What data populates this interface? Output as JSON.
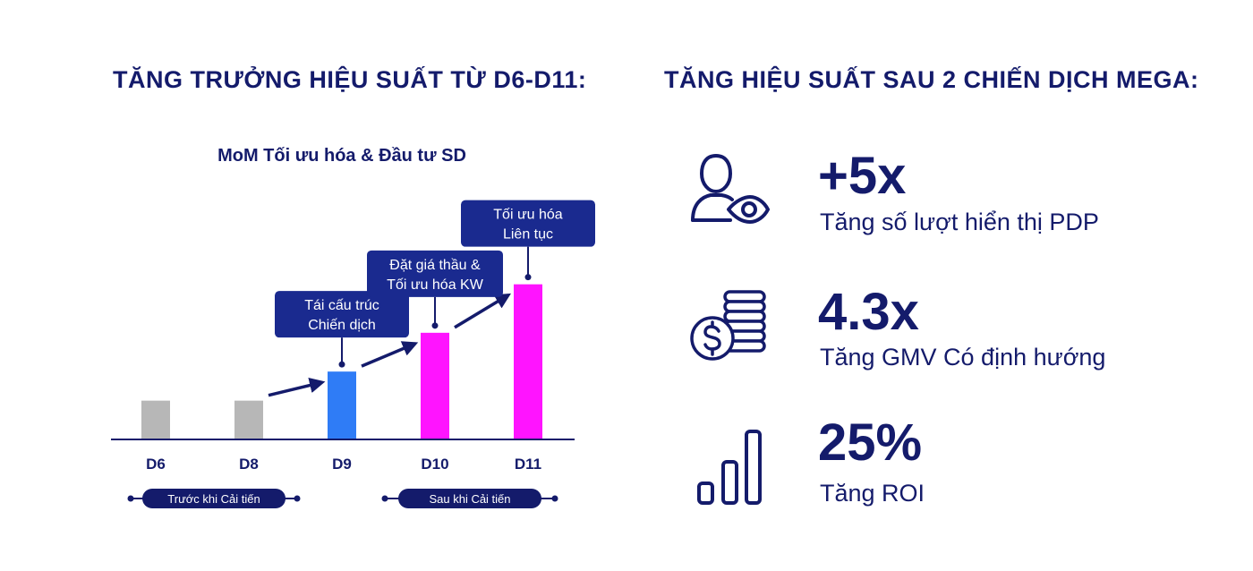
{
  "left_heading": "TĂNG TRƯỞNG HIỆU SUẤT TỪ D6-D11:",
  "right_heading": "TĂNG HIỆU SUẤT SAU 2 CHIẾN DỊCH MEGA:",
  "chart_data": {
    "type": "bar",
    "title": "MoM Tối ưu hóa & Đầu tư SD",
    "categories": [
      "D6",
      "D8",
      "D9",
      "D10",
      "D11"
    ],
    "values": [
      1,
      1,
      1.75,
      2.75,
      4
    ],
    "ylim": [
      0,
      4.5
    ],
    "grid": false,
    "axis_values_shown": false,
    "colors": [
      "#b7b7b7",
      "#b7b7b7",
      "#2f7cf6",
      "#ff14ff",
      "#ff14ff"
    ],
    "annotations": [
      {
        "category": "D9",
        "lines": [
          "Tái cấu trúc",
          "Chiến dịch"
        ]
      },
      {
        "category": "D10",
        "lines": [
          "Đặt giá thầu &",
          "Tối ưu hóa KW"
        ]
      },
      {
        "category": "D11",
        "lines": [
          "Tối ưu hóa",
          "Liên tục"
        ]
      }
    ],
    "periods": [
      {
        "label": "Trước khi Cải tiến",
        "from": "D6",
        "to": "D8"
      },
      {
        "label": "Sau khi Cải tiến",
        "from": "D10",
        "to": "D11"
      }
    ]
  },
  "stats": [
    {
      "icon": "person-eye-icon",
      "value": "+5x",
      "label": "Tăng số lượt hiển thị PDP"
    },
    {
      "icon": "coins-dollar-icon",
      "value": "4.3x",
      "label": "Tăng GMV Có định hướng"
    },
    {
      "icon": "bar-chart-icon",
      "value": "25%",
      "label": "Tăng ROI"
    }
  ],
  "colors": {
    "navy": "#141b6b",
    "callout": "#1a2a8f",
    "gray_bar": "#b7b7b7",
    "blue_bar": "#2f7cf6",
    "magenta_bar": "#ff14ff"
  }
}
